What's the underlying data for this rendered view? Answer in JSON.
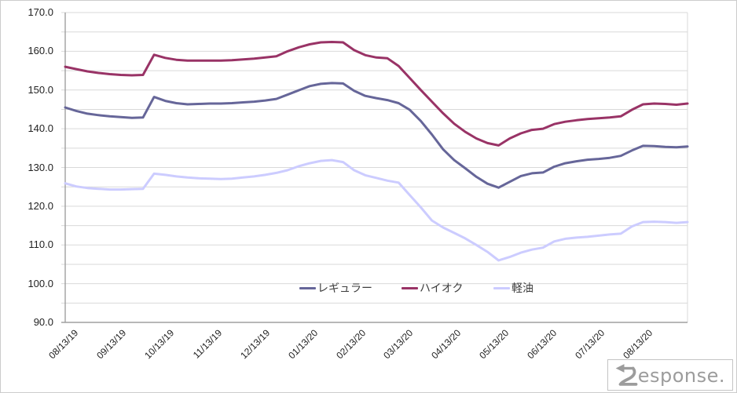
{
  "colors": {
    "grid": "#d9d9d9",
    "axis": "#9f9f9f",
    "plot_right_border": "#d9d9d9",
    "tick_label": "#222222"
  },
  "chart_data": {
    "type": "line",
    "title": "",
    "xlabel": "",
    "ylabel": "",
    "grid": true,
    "legend_position": "bottom-center",
    "y_axis": {
      "min": 90,
      "max": 170,
      "label_step": 10,
      "grid_step": 5,
      "tick_labels": [
        "170.0",
        "160.0",
        "150.0",
        "140.0",
        "130.0",
        "120.0",
        "110.0",
        "100.0",
        "90.0"
      ]
    },
    "x_axis": {
      "tick_labels": [
        "08/13/19",
        "09/13/19",
        "10/13/19",
        "11/13/19",
        "12/13/19",
        "01/13/20",
        "02/13/20",
        "03/13/20",
        "04/13/20",
        "05/13/20",
        "06/13/20",
        "07/13/20",
        "08/13/20"
      ],
      "points_per_series": 57,
      "sampling": "weekly"
    },
    "series": [
      {
        "name": "レギュラー",
        "color": "#666699",
        "values": [
          145.5,
          144.6,
          143.9,
          143.5,
          143.2,
          143.0,
          142.8,
          142.9,
          148.2,
          147.2,
          146.6,
          146.3,
          146.4,
          146.5,
          146.5,
          146.6,
          146.8,
          147.0,
          147.3,
          147.7,
          148.8,
          149.9,
          151.0,
          151.6,
          151.8,
          151.7,
          149.8,
          148.5,
          147.9,
          147.4,
          146.6,
          144.9,
          142.0,
          138.5,
          134.7,
          131.9,
          129.8,
          127.6,
          125.8,
          124.8,
          126.3,
          127.8,
          128.5,
          128.7,
          130.2,
          131.1,
          131.6,
          132.0,
          132.2,
          132.5,
          133.0,
          134.4,
          135.6,
          135.5,
          135.3,
          135.2,
          135.4
        ]
      },
      {
        "name": "ハイオク",
        "color": "#993366",
        "values": [
          156.0,
          155.4,
          154.8,
          154.4,
          154.1,
          153.9,
          153.8,
          153.9,
          159.1,
          158.3,
          157.8,
          157.6,
          157.6,
          157.6,
          157.6,
          157.7,
          157.9,
          158.1,
          158.4,
          158.7,
          160.0,
          161.0,
          161.8,
          162.3,
          162.4,
          162.3,
          160.3,
          159.0,
          158.4,
          158.2,
          156.2,
          153.1,
          150.0,
          147.0,
          144.0,
          141.3,
          139.2,
          137.5,
          136.3,
          135.7,
          137.5,
          138.8,
          139.7,
          140.0,
          141.2,
          141.8,
          142.2,
          142.5,
          142.7,
          142.9,
          143.2,
          144.9,
          146.3,
          146.5,
          146.4,
          146.2,
          146.5
        ]
      },
      {
        "name": "軽油",
        "color": "#ccccff",
        "values": [
          125.9,
          125.1,
          124.7,
          124.5,
          124.3,
          124.3,
          124.4,
          124.5,
          128.4,
          128.1,
          127.7,
          127.4,
          127.2,
          127.1,
          127.0,
          127.1,
          127.4,
          127.7,
          128.1,
          128.6,
          129.3,
          130.3,
          131.1,
          131.7,
          131.9,
          131.4,
          129.3,
          128.0,
          127.3,
          126.6,
          126.1,
          122.9,
          119.7,
          116.3,
          114.5,
          113.1,
          111.7,
          110.0,
          108.2,
          106.0,
          106.9,
          108.0,
          108.8,
          109.3,
          110.9,
          111.6,
          111.9,
          112.1,
          112.4,
          112.7,
          112.9,
          114.8,
          115.9,
          116.0,
          115.9,
          115.7,
          115.9
        ]
      }
    ]
  },
  "legend": {
    "items": [
      "レギュラー",
      "ハイオク",
      "軽油"
    ]
  },
  "watermark": {
    "text": "Response.",
    "color": "#9c9c9c"
  }
}
